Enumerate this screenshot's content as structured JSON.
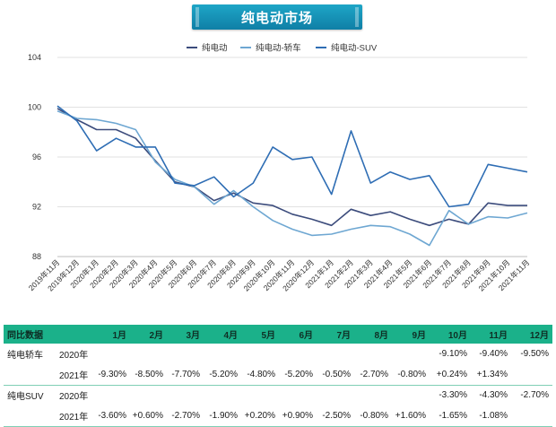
{
  "title": "纯电动市场",
  "chart_data": {
    "type": "line",
    "categories": [
      "2019年11月",
      "2019年12月",
      "2020年1月",
      "2020年2月",
      "2020年3月",
      "2020年4月",
      "2020年5月",
      "2020年6月",
      "2020年7月",
      "2020年8月",
      "2020年9月",
      "2020年10月",
      "2020年11月",
      "2020年12月",
      "2021年1月",
      "2021年2月",
      "2021年3月",
      "2021年4月",
      "2021年5月",
      "2021年6月",
      "2021年7月",
      "2021年8月",
      "2021年9月",
      "2021年10月",
      "2021年11月"
    ],
    "series": [
      {
        "name": "纯电动",
        "color": "#3c4c7c",
        "values": [
          99.9,
          99.0,
          98.2,
          98.2,
          97.5,
          95.7,
          94.0,
          93.6,
          92.5,
          93.1,
          92.3,
          92.1,
          91.4,
          91.0,
          90.5,
          91.8,
          91.3,
          91.6,
          91.0,
          90.5,
          91.0,
          90.6,
          92.3,
          92.1,
          92.1
        ]
      },
      {
        "name": "纯电动-轿车",
        "color": "#6ea7d2",
        "values": [
          99.7,
          99.1,
          99.0,
          98.7,
          98.2,
          95.6,
          94.2,
          93.6,
          92.2,
          93.3,
          92.0,
          90.9,
          90.2,
          89.7,
          89.8,
          90.2,
          90.5,
          90.4,
          89.8,
          88.9,
          91.7,
          90.6,
          91.2,
          91.1,
          91.5
        ]
      },
      {
        "name": "纯电动-SUV",
        "color": "#2e6db4",
        "values": [
          100.1,
          98.9,
          96.5,
          97.5,
          96.8,
          96.8,
          93.9,
          93.7,
          94.4,
          92.8,
          93.9,
          96.8,
          95.8,
          96.0,
          93.0,
          98.1,
          93.9,
          94.8,
          94.2,
          94.5,
          92.0,
          92.2,
          95.4,
          95.1,
          94.8
        ]
      }
    ],
    "y_ticks": [
      "88",
      "92",
      "96",
      "100",
      "104"
    ],
    "ylim": [
      88,
      104
    ],
    "title": "纯电动市场",
    "xlabel": "",
    "ylabel": "",
    "legend_position": "top-center"
  },
  "table": {
    "header_label": "同比数据",
    "months": [
      "1月",
      "2月",
      "3月",
      "4月",
      "5月",
      "6月",
      "7月",
      "8月",
      "9月",
      "10月",
      "11月",
      "12月"
    ],
    "rows": [
      {
        "label": "纯电轿车",
        "year": "2020年",
        "values": [
          "",
          "",
          "",
          "",
          "",
          "",
          "",
          "",
          "",
          "-9.10%",
          "-9.40%",
          "-9.50%"
        ],
        "group_end": false
      },
      {
        "label": "",
        "year": "2021年",
        "values": [
          "-9.30%",
          "-8.50%",
          "-7.70%",
          "-5.20%",
          "-4.80%",
          "-5.20%",
          "-0.50%",
          "-2.70%",
          "-0.80%",
          "+0.24%",
          "+1.34%",
          ""
        ],
        "group_end": true
      },
      {
        "label": "纯电SUV",
        "year": "2020年",
        "values": [
          "",
          "",
          "",
          "",
          "",
          "",
          "",
          "",
          "",
          "-3.30%",
          "-4.30%",
          "-2.70%"
        ],
        "group_end": false
      },
      {
        "label": "",
        "year": "2021年",
        "values": [
          "-3.60%",
          "+0.60%",
          "-2.70%",
          "-1.90%",
          "+0.20%",
          "+0.90%",
          "-2.50%",
          "-0.80%",
          "+1.60%",
          "-1.65%",
          "-1.08%",
          ""
        ],
        "group_end": true
      }
    ]
  }
}
